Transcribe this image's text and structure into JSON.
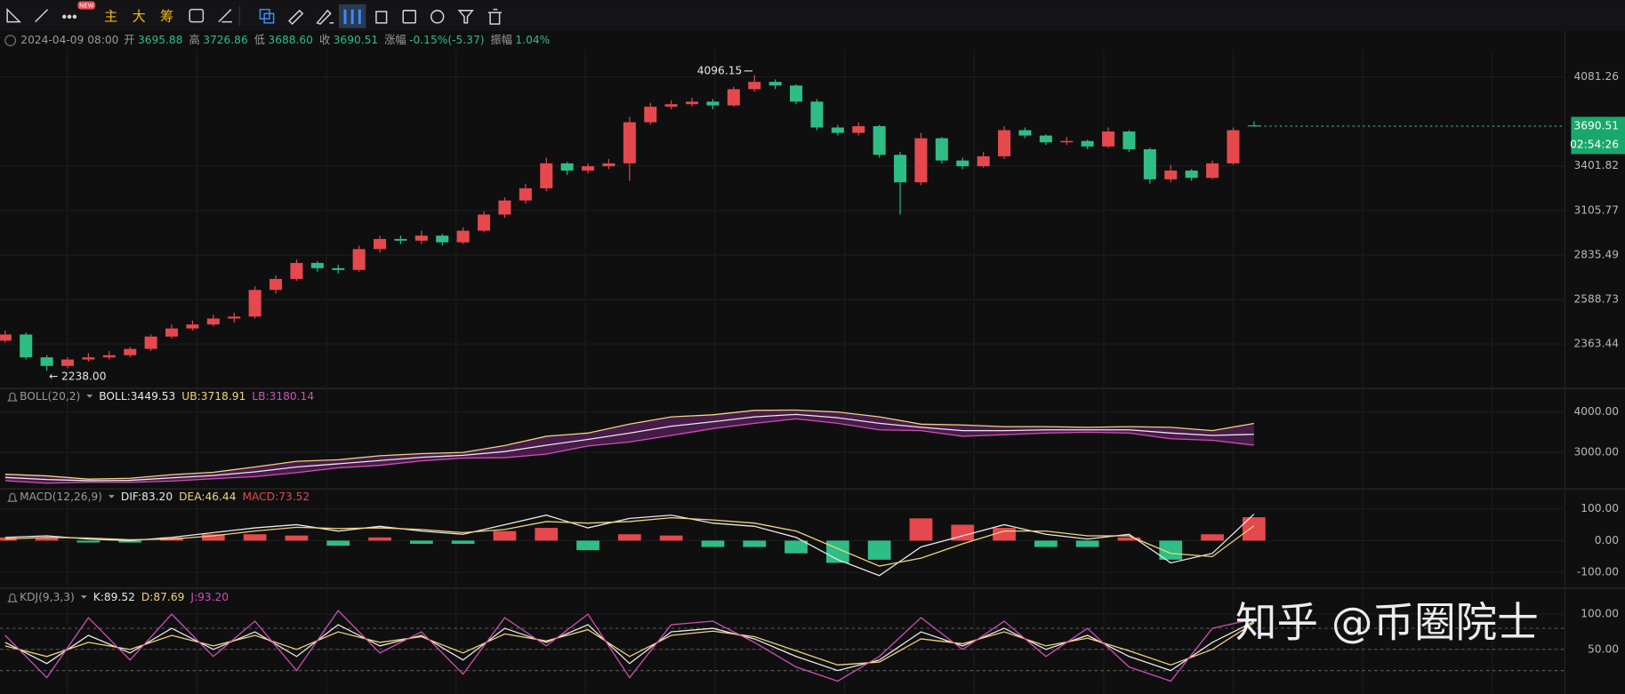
{
  "toolbar": {
    "buttons": [
      "主",
      "大",
      "筹"
    ],
    "badge": "NEW"
  },
  "header": {
    "datetime": "2024-04-09 08:00",
    "items": [
      {
        "label": "开",
        "value": "3695.88"
      },
      {
        "label": "高",
        "value": "3726.86"
      },
      {
        "label": "低",
        "value": "3688.60"
      },
      {
        "label": "收",
        "value": "3690.51"
      },
      {
        "label": "涨幅",
        "value": "-0.15%(-5.37)"
      },
      {
        "label": "振幅",
        "value": "1.04%"
      }
    ]
  },
  "chart_data": [
    {
      "type": "candlestick",
      "log_scale": true,
      "grid": true,
      "up_color": "#e5484d",
      "down_color": "#2ebd85",
      "open": [
        2380,
        2410,
        2300,
        2260,
        2290,
        2300,
        2310,
        2340,
        2400,
        2440,
        2460,
        2490,
        2500,
        2640,
        2700,
        2790,
        2760,
        2750,
        2870,
        2930,
        2920,
        2950,
        2910,
        2980,
        3080,
        3170,
        3250,
        3420,
        3370,
        3400,
        3420,
        3720,
        3840,
        3860,
        3880,
        3850,
        3980,
        4040,
        4010,
        3880,
        3680,
        3640,
        3690,
        3480,
        3290,
        3600,
        3440,
        3400,
        3470,
        3660,
        3620,
        3570,
        3580,
        3540,
        3650,
        3520,
        3310,
        3370,
        3320,
        3420,
        3695.88
      ],
      "high": [
        2430,
        2420,
        2310,
        2300,
        2320,
        2330,
        2350,
        2410,
        2460,
        2480,
        2510,
        2520,
        2660,
        2720,
        2810,
        2800,
        2780,
        2890,
        2950,
        2950,
        2980,
        2960,
        3000,
        3100,
        3190,
        3280,
        3460,
        3430,
        3420,
        3450,
        3760,
        3870,
        3890,
        3910,
        3900,
        4000,
        4096.15,
        4060,
        4020,
        3900,
        3700,
        3720,
        3700,
        3500,
        3640,
        3610,
        3460,
        3500,
        3690,
        3680,
        3630,
        3610,
        3590,
        3680,
        3660,
        3530,
        3410,
        3380,
        3440,
        3680,
        3726.86
      ],
      "low": [
        2370,
        2290,
        2238,
        2250,
        2280,
        2290,
        2300,
        2330,
        2390,
        2430,
        2450,
        2470,
        2490,
        2620,
        2690,
        2740,
        2730,
        2740,
        2850,
        2900,
        2900,
        2890,
        2900,
        2970,
        3060,
        3150,
        3230,
        3340,
        3350,
        3380,
        3300,
        3700,
        3820,
        3840,
        3820,
        3840,
        3960,
        3980,
        3860,
        3660,
        3620,
        3620,
        3460,
        3080,
        3270,
        3420,
        3380,
        3390,
        3450,
        3600,
        3550,
        3550,
        3520,
        3530,
        3500,
        3280,
        3290,
        3300,
        3310,
        3410,
        3688.6
      ],
      "close": [
        2410,
        2300,
        2260,
        2290,
        2300,
        2310,
        2340,
        2400,
        2440,
        2460,
        2490,
        2500,
        2640,
        2700,
        2790,
        2760,
        2750,
        2870,
        2930,
        2920,
        2950,
        2910,
        2980,
        3080,
        3170,
        3250,
        3420,
        3370,
        3400,
        3420,
        3720,
        3840,
        3860,
        3880,
        3850,
        3980,
        4040,
        4010,
        3880,
        3680,
        3640,
        3690,
        3480,
        3290,
        3600,
        3440,
        3400,
        3470,
        3660,
        3620,
        3570,
        3580,
        3540,
        3650,
        3520,
        3310,
        3370,
        3320,
        3420,
        3660,
        3690.51
      ],
      "ylim": [
        2200,
        4250
      ],
      "yticks": [
        2363.44,
        2588.73,
        2835.49,
        3105.77,
        3401.82,
        4081.26
      ],
      "annotations": [
        {
          "value": 4096.15,
          "label": "4096.15"
        },
        {
          "value": 2238,
          "label": "2238.00"
        }
      ],
      "last_price": 3690.51,
      "countdown": "02:54:26"
    },
    {
      "type": "band",
      "title": "BOLL(20,2)",
      "fill": "#5a1f5c",
      "readouts": [
        "BOLL:3449.53",
        "UB:3718.91",
        "LB:3180.14"
      ],
      "series": [
        {
          "color": "#e8e8e8",
          "values": [
            2380,
            2330,
            2300,
            2310,
            2370,
            2430,
            2520,
            2640,
            2720,
            2800,
            2880,
            2930,
            3020,
            3180,
            3320,
            3480,
            3650,
            3760,
            3880,
            3940,
            3860,
            3720,
            3620,
            3540,
            3540,
            3560,
            3560,
            3560,
            3480,
            3420,
            3449.53
          ]
        },
        {
          "color": "#f0d37a",
          "values": [
            2460,
            2420,
            2340,
            2360,
            2450,
            2510,
            2640,
            2780,
            2820,
            2920,
            2970,
            3000,
            3170,
            3400,
            3480,
            3700,
            3880,
            3930,
            4040,
            4050,
            4000,
            3880,
            3700,
            3680,
            3640,
            3640,
            3620,
            3640,
            3620,
            3540,
            3718.91
          ]
        },
        {
          "color": "#d04fb5",
          "values": [
            2300,
            2240,
            2260,
            2260,
            2290,
            2350,
            2400,
            2500,
            2620,
            2680,
            2790,
            2860,
            2870,
            2960,
            3160,
            3260,
            3420,
            3590,
            3720,
            3830,
            3720,
            3560,
            3540,
            3400,
            3440,
            3480,
            3500,
            3480,
            3340,
            3300,
            3180.14
          ]
        }
      ],
      "ylim": [
        2150,
        4200
      ],
      "yticks": [
        {
          "value": 3000,
          "label": "3000.00"
        },
        {
          "value": 4000,
          "label": "4000.00"
        }
      ]
    },
    {
      "type": "macd",
      "title": "MACD(12,26,9)",
      "readouts": [
        "DIF:83.20",
        "DEA:46.44",
        "MACD:73.52"
      ],
      "series": [
        {
          "kind": "line",
          "color": "#e8e8e8",
          "values": [
            10,
            15,
            5,
            0,
            10,
            25,
            40,
            50,
            30,
            45,
            30,
            20,
            50,
            80,
            40,
            70,
            80,
            55,
            45,
            10,
            -60,
            -110,
            -20,
            15,
            50,
            20,
            5,
            20,
            -70,
            -40,
            83.2
          ]
        },
        {
          "kind": "line",
          "color": "#f0d37a",
          "values": [
            5,
            10,
            8,
            3,
            5,
            15,
            30,
            42,
            38,
            40,
            35,
            25,
            35,
            60,
            55,
            60,
            72,
            65,
            55,
            30,
            -25,
            -80,
            -55,
            -10,
            30,
            30,
            15,
            15,
            -40,
            -50,
            46.44
          ]
        },
        {
          "kind": "bar",
          "up_color": "#e5484d",
          "down_color": "#2ebd85",
          "values": [
            10,
            10,
            -6,
            -6,
            10,
            20,
            20,
            16,
            -16,
            10,
            -10,
            -10,
            30,
            40,
            -30,
            20,
            16,
            -20,
            -20,
            -40,
            -70,
            -60,
            70,
            50,
            40,
            -20,
            -20,
            10,
            -60,
            20,
            73.52
          ]
        }
      ],
      "ylim": [
        -140,
        140
      ],
      "yticks": [
        {
          "value": -100,
          "label": "-100.00"
        },
        {
          "value": 0,
          "label": "0.00"
        },
        {
          "value": 100,
          "label": "100.00"
        }
      ]
    },
    {
      "type": "line",
      "title": "KDJ(9,3,3)",
      "readouts": [
        "K:89.52",
        "D:87.69",
        "J:93.20"
      ],
      "series": [
        {
          "color": "#e8e8e8",
          "values": [
            60,
            30,
            70,
            45,
            80,
            50,
            75,
            40,
            85,
            55,
            70,
            35,
            80,
            60,
            85,
            30,
            75,
            80,
            65,
            40,
            20,
            35,
            75,
            55,
            80,
            50,
            70,
            40,
            20,
            60,
            89.52
          ]
        },
        {
          "color": "#f0d37a",
          "values": [
            55,
            40,
            60,
            50,
            70,
            55,
            70,
            50,
            75,
            60,
            68,
            45,
            72,
            62,
            78,
            40,
            70,
            76,
            68,
            48,
            28,
            32,
            65,
            58,
            75,
            55,
            66,
            48,
            28,
            50,
            87.69
          ]
        },
        {
          "color": "#d04fb5",
          "values": [
            70,
            10,
            95,
            35,
            100,
            40,
            90,
            20,
            105,
            45,
            75,
            15,
            95,
            55,
            100,
            10,
            85,
            90,
            60,
            25,
            5,
            40,
            95,
            50,
            90,
            40,
            80,
            25,
            5,
            80,
            93.2
          ]
        }
      ],
      "dashed_levels": [
        20,
        50,
        80
      ],
      "ylim": [
        -13,
        125
      ],
      "yticks": [
        {
          "value": 50,
          "label": "50.00"
        },
        {
          "value": 100,
          "label": "100.00"
        }
      ]
    }
  ],
  "watermark": "知乎 @币圈院士"
}
